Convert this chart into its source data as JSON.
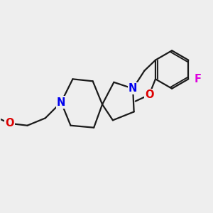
{
  "bg_color": "#eeeeee",
  "bond_color": "#1a1a1a",
  "N_color": "#0000ee",
  "O_color": "#dd0000",
  "F_color": "#dd00dd",
  "line_width": 1.6,
  "font_size": 10.5,
  "fig_size": [
    3.0,
    3.0
  ],
  "dpi": 100,
  "xlim": [
    0.0,
    10.0
  ],
  "ylim": [
    1.5,
    9.5
  ]
}
